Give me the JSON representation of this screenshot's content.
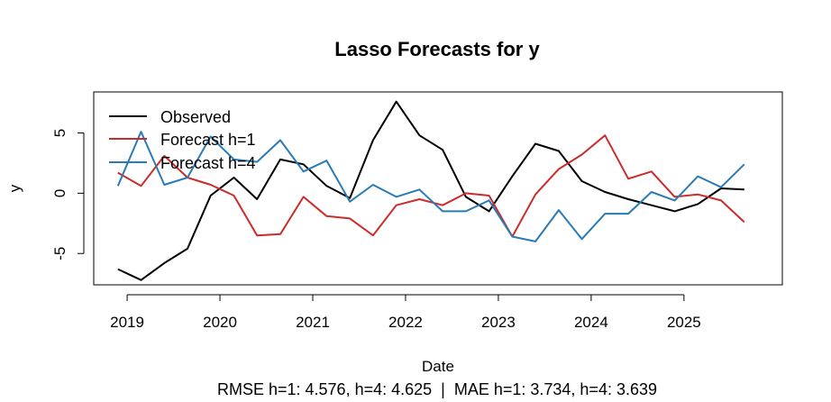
{
  "chart_data": {
    "type": "line",
    "title": "Lasso Forecasts for y",
    "xlabel": "Date",
    "ylabel": "y",
    "footer": "RMSE h=1: 4.576, h=4: 4.625  |  MAE h=1: 3.734, h=4: 3.639",
    "x_ticks": [
      "2019",
      "2020",
      "2021",
      "2022",
      "2023",
      "2024",
      "2025"
    ],
    "y_ticks": [
      "-5",
      "0",
      "5"
    ],
    "xlim": [
      2018.64,
      2026.06
    ],
    "ylim": [
      -7.6,
      8.4
    ],
    "x": [
      2018.9,
      2019.15,
      2019.4,
      2019.65,
      2019.9,
      2020.15,
      2020.4,
      2020.65,
      2020.9,
      2021.15,
      2021.4,
      2021.65,
      2021.9,
      2022.15,
      2022.4,
      2022.65,
      2022.9,
      2023.15,
      2023.4,
      2023.65,
      2023.9,
      2024.15,
      2024.4,
      2024.65,
      2024.9,
      2025.15,
      2025.4,
      2025.65
    ],
    "legend_position": "top-left",
    "series": [
      {
        "name": "Observed",
        "color": "#000000",
        "values": [
          -6.3,
          -7.2,
          -5.8,
          -4.6,
          -0.2,
          1.3,
          -0.5,
          2.8,
          2.4,
          0.6,
          -0.4,
          4.4,
          7.6,
          4.8,
          3.6,
          -0.3,
          -1.5,
          1.4,
          4.1,
          3.5,
          1.0,
          0.1,
          -0.5,
          -1.0,
          -1.5,
          -0.9,
          0.4,
          0.3
        ]
      },
      {
        "name": "Forecast h=1",
        "color": "#cc2b2b",
        "values": [
          1.7,
          0.6,
          3.1,
          1.3,
          0.7,
          -0.2,
          -3.5,
          -3.4,
          -0.3,
          -1.9,
          -2.1,
          -3.5,
          -1.0,
          -0.5,
          -1.0,
          0.0,
          -0.2,
          -3.6,
          -0.1,
          2.0,
          3.2,
          4.8,
          1.2,
          1.8,
          -0.3,
          -0.1,
          -0.6,
          -2.4
        ]
      },
      {
        "name": "Forecast h=4",
        "color": "#2a7bb5",
        "values": [
          0.6,
          5.1,
          0.7,
          1.3,
          4.7,
          2.8,
          2.6,
          4.4,
          1.8,
          2.7,
          -0.7,
          0.7,
          -0.3,
          0.3,
          -1.5,
          -1.5,
          -0.6,
          -3.6,
          -4.0,
          -1.4,
          -3.8,
          -1.7,
          -1.7,
          0.1,
          -0.6,
          1.4,
          0.5,
          2.4
        ]
      }
    ]
  }
}
